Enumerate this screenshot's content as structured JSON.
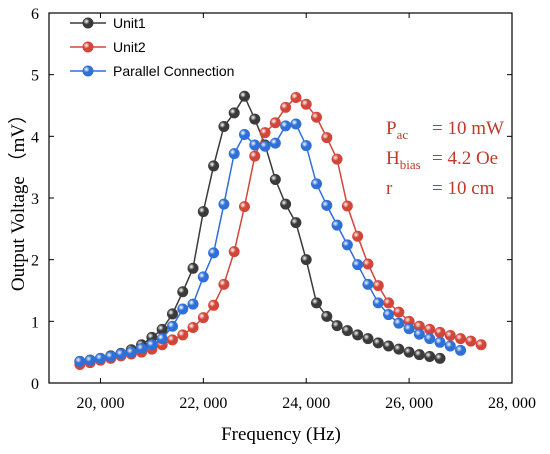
{
  "chart_data": {
    "type": "line",
    "title": "",
    "xlabel": "Frequency (Hz)",
    "ylabel": "Output Voltage （mV）",
    "xlim": [
      19000,
      28000
    ],
    "ylim": [
      0,
      6
    ],
    "x_ticks": [
      20000,
      22000,
      24000,
      26000,
      28000
    ],
    "x_tick_labels": [
      "20, 000",
      "22, 000",
      "24, 000",
      "26, 000",
      "28, 000"
    ],
    "y_ticks": [
      0,
      1,
      2,
      3,
      4,
      5,
      6
    ],
    "y_tick_labels": [
      "0",
      "1",
      "2",
      "3",
      "4",
      "5",
      "6"
    ],
    "legend_placement": "top-left",
    "grid": false,
    "series": [
      {
        "name": "Unit1",
        "color": "#3a3a3a",
        "points": [
          [
            19600,
            0.35
          ],
          [
            19800,
            0.37
          ],
          [
            20000,
            0.4
          ],
          [
            20200,
            0.44
          ],
          [
            20400,
            0.48
          ],
          [
            20600,
            0.54
          ],
          [
            20800,
            0.62
          ],
          [
            21000,
            0.74
          ],
          [
            21200,
            0.87
          ],
          [
            21400,
            1.12
          ],
          [
            21600,
            1.48
          ],
          [
            21800,
            1.86
          ],
          [
            22000,
            2.78
          ],
          [
            22200,
            3.52
          ],
          [
            22400,
            4.16
          ],
          [
            22600,
            4.38
          ],
          [
            22800,
            4.65
          ],
          [
            23000,
            4.28
          ],
          [
            23200,
            3.86
          ],
          [
            23400,
            3.3
          ],
          [
            23600,
            2.9
          ],
          [
            23800,
            2.6
          ],
          [
            24000,
            2.0
          ],
          [
            24200,
            1.3
          ],
          [
            24400,
            1.08
          ],
          [
            24600,
            0.93
          ],
          [
            24800,
            0.85
          ],
          [
            25000,
            0.78
          ],
          [
            25200,
            0.72
          ],
          [
            25400,
            0.65
          ],
          [
            25600,
            0.6
          ],
          [
            25800,
            0.55
          ],
          [
            26000,
            0.5
          ],
          [
            26200,
            0.46
          ],
          [
            26400,
            0.43
          ],
          [
            26600,
            0.4
          ]
        ]
      },
      {
        "name": "Unit2",
        "color": "#d2463a",
        "points": [
          [
            19600,
            0.3
          ],
          [
            19800,
            0.33
          ],
          [
            20000,
            0.37
          ],
          [
            20200,
            0.4
          ],
          [
            20400,
            0.44
          ],
          [
            20600,
            0.47
          ],
          [
            20800,
            0.5
          ],
          [
            21000,
            0.55
          ],
          [
            21200,
            0.62
          ],
          [
            21400,
            0.7
          ],
          [
            21600,
            0.78
          ],
          [
            21800,
            0.9
          ],
          [
            22000,
            1.06
          ],
          [
            22200,
            1.26
          ],
          [
            22400,
            1.6
          ],
          [
            22600,
            2.13
          ],
          [
            22800,
            2.86
          ],
          [
            23000,
            3.68
          ],
          [
            23200,
            4.06
          ],
          [
            23400,
            4.22
          ],
          [
            23600,
            4.47
          ],
          [
            23800,
            4.63
          ],
          [
            24000,
            4.52
          ],
          [
            24200,
            4.31
          ],
          [
            24400,
            3.98
          ],
          [
            24600,
            3.63
          ],
          [
            24800,
            2.87
          ],
          [
            25000,
            2.38
          ],
          [
            25200,
            1.93
          ],
          [
            25400,
            1.58
          ],
          [
            25600,
            1.3
          ],
          [
            25800,
            1.15
          ],
          [
            26000,
            1.0
          ],
          [
            26200,
            0.92
          ],
          [
            26400,
            0.87
          ],
          [
            26600,
            0.82
          ],
          [
            26800,
            0.77
          ],
          [
            27000,
            0.72
          ],
          [
            27200,
            0.68
          ],
          [
            27400,
            0.62
          ]
        ]
      },
      {
        "name": "Parallel Connection",
        "color": "#2e6fd8",
        "points": [
          [
            19600,
            0.35
          ],
          [
            19800,
            0.37
          ],
          [
            20000,
            0.4
          ],
          [
            20200,
            0.43
          ],
          [
            20400,
            0.47
          ],
          [
            20600,
            0.5
          ],
          [
            20800,
            0.56
          ],
          [
            21000,
            0.62
          ],
          [
            21200,
            0.72
          ],
          [
            21400,
            0.92
          ],
          [
            21600,
            1.2
          ],
          [
            21800,
            1.28
          ],
          [
            22000,
            1.72
          ],
          [
            22200,
            2.11
          ],
          [
            22400,
            2.9
          ],
          [
            22600,
            3.72
          ],
          [
            22800,
            4.03
          ],
          [
            23000,
            3.86
          ],
          [
            23200,
            3.84
          ],
          [
            23400,
            3.89
          ],
          [
            23600,
            4.17
          ],
          [
            23800,
            4.2
          ],
          [
            24000,
            3.85
          ],
          [
            24200,
            3.23
          ],
          [
            24400,
            2.88
          ],
          [
            24600,
            2.56
          ],
          [
            24800,
            2.24
          ],
          [
            25000,
            1.92
          ],
          [
            25200,
            1.6
          ],
          [
            25400,
            1.3
          ],
          [
            25600,
            1.11
          ],
          [
            25800,
            0.97
          ],
          [
            26000,
            0.88
          ],
          [
            26200,
            0.79
          ],
          [
            26400,
            0.72
          ],
          [
            26600,
            0.66
          ],
          [
            26800,
            0.6
          ],
          [
            27000,
            0.53
          ]
        ]
      }
    ],
    "annotations": [
      {
        "main": "P",
        "sub": "ac",
        "value": "= 10 mW"
      },
      {
        "main": "H",
        "sub": "bias",
        "value": "= 4.2 Oe"
      },
      {
        "main": "r",
        "sub": "",
        "value": "= 10 cm"
      }
    ],
    "annotation_color": "#c0392b"
  }
}
